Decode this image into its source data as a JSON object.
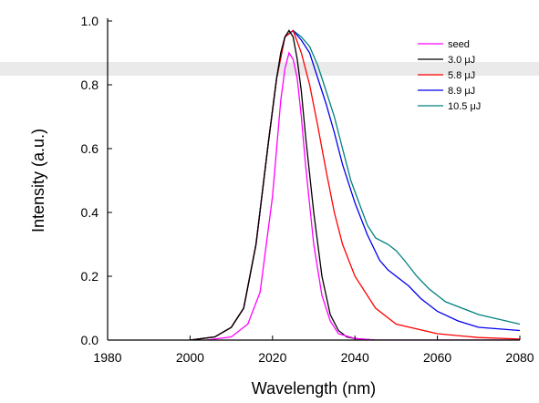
{
  "chart_data": {
    "type": "line",
    "xlabel": "Wavelength (nm)",
    "ylabel": "Intensity (a.u.)",
    "xlim": [
      1980,
      2080
    ],
    "ylim": [
      0.0,
      1.0
    ],
    "xticks": [
      1980,
      2000,
      2020,
      2040,
      2060,
      2080
    ],
    "xtick_labels": [
      "1980",
      "2000",
      "2020",
      "2040",
      "2060",
      "2080"
    ],
    "yticks": [
      0.0,
      0.2,
      0.4,
      0.6,
      0.8,
      1.0
    ],
    "ytick_labels": [
      "0.0",
      "0.2",
      "0.4",
      "0.6",
      "0.8",
      "1.0"
    ],
    "legend_position": "top-right",
    "series": [
      {
        "name": "seed",
        "color": "#ff00ff",
        "x": [
          2004,
          2010,
          2014,
          2017,
          2020,
          2022,
          2023,
          2024,
          2025,
          2026,
          2027,
          2028,
          2030,
          2032,
          2034,
          2036,
          2040,
          2045,
          2080
        ],
        "y": [
          0.0,
          0.01,
          0.05,
          0.15,
          0.45,
          0.75,
          0.85,
          0.9,
          0.88,
          0.82,
          0.7,
          0.55,
          0.3,
          0.14,
          0.06,
          0.02,
          0.005,
          0.0,
          0.0
        ]
      },
      {
        "name": "3.0 μJ",
        "color": "#000000",
        "x": [
          2000,
          2006,
          2010,
          2013,
          2016,
          2019,
          2021,
          2022,
          2023,
          2024,
          2025,
          2026,
          2027,
          2028,
          2030,
          2032,
          2034,
          2036,
          2038,
          2040,
          2045,
          2080
        ],
        "y": [
          0.0,
          0.01,
          0.04,
          0.1,
          0.3,
          0.62,
          0.82,
          0.9,
          0.95,
          0.97,
          0.95,
          0.88,
          0.78,
          0.64,
          0.4,
          0.2,
          0.08,
          0.03,
          0.01,
          0.005,
          0.0,
          0.0
        ]
      },
      {
        "name": "5.8 μJ",
        "color": "#ff0000",
        "x": [
          2000,
          2006,
          2010,
          2013,
          2016,
          2019,
          2021,
          2023,
          2025,
          2027,
          2029,
          2031,
          2033,
          2035,
          2037,
          2040,
          2045,
          2050,
          2060,
          2070,
          2080
        ],
        "y": [
          0.0,
          0.01,
          0.04,
          0.1,
          0.3,
          0.62,
          0.82,
          0.95,
          0.97,
          0.9,
          0.8,
          0.67,
          0.53,
          0.4,
          0.3,
          0.2,
          0.1,
          0.05,
          0.02,
          0.008,
          0.003
        ]
      },
      {
        "name": "8.9 μJ",
        "color": "#0000ee",
        "x": [
          2000,
          2006,
          2010,
          2013,
          2016,
          2019,
          2021,
          2023,
          2025,
          2027,
          2029,
          2031,
          2033,
          2035,
          2037,
          2040,
          2043,
          2046,
          2048,
          2050,
          2053,
          2056,
          2060,
          2065,
          2070,
          2080
        ],
        "y": [
          0.0,
          0.01,
          0.04,
          0.1,
          0.3,
          0.62,
          0.82,
          0.95,
          0.97,
          0.94,
          0.9,
          0.82,
          0.74,
          0.65,
          0.55,
          0.43,
          0.33,
          0.25,
          0.22,
          0.2,
          0.17,
          0.13,
          0.09,
          0.06,
          0.04,
          0.03
        ]
      },
      {
        "name": "10.5 μJ",
        "color": "#008080",
        "x": [
          2000,
          2006,
          2010,
          2013,
          2016,
          2019,
          2021,
          2023,
          2025,
          2027,
          2029,
          2031,
          2033,
          2035,
          2037,
          2039,
          2041,
          2043,
          2045,
          2048,
          2050,
          2052,
          2055,
          2058,
          2062,
          2066,
          2070,
          2075,
          2080
        ],
        "y": [
          0.0,
          0.01,
          0.04,
          0.1,
          0.3,
          0.62,
          0.82,
          0.95,
          0.97,
          0.95,
          0.92,
          0.86,
          0.78,
          0.7,
          0.6,
          0.5,
          0.43,
          0.36,
          0.32,
          0.3,
          0.28,
          0.25,
          0.2,
          0.16,
          0.12,
          0.1,
          0.08,
          0.065,
          0.05
        ]
      }
    ]
  }
}
